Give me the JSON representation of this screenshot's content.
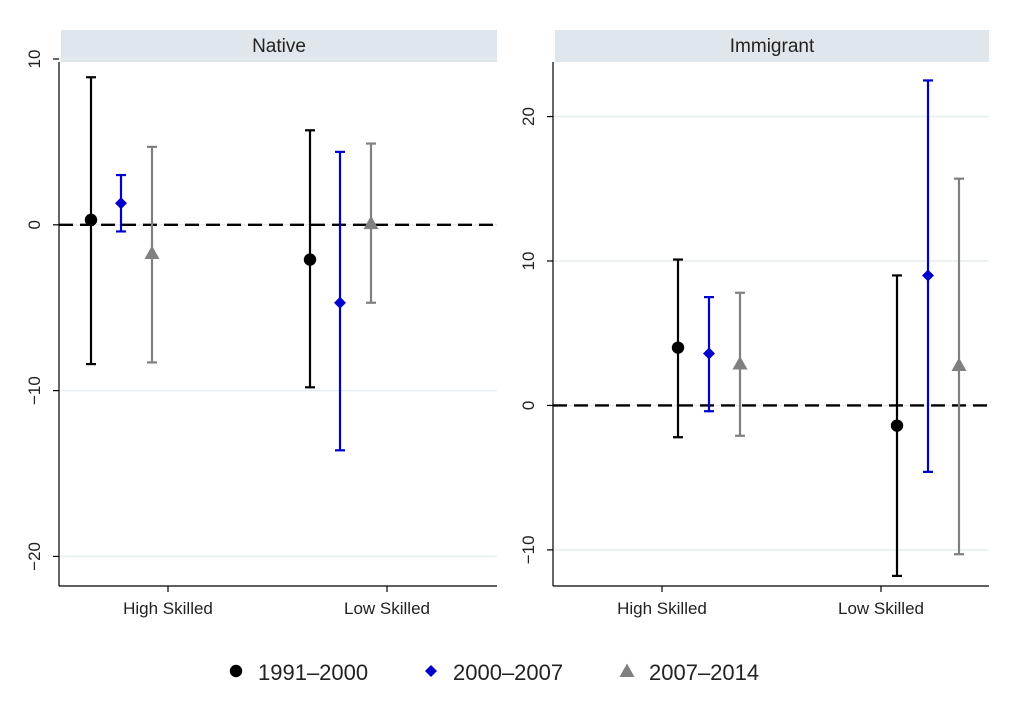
{
  "colors": {
    "strip": "#dfe7ec",
    "grid": "#e6eef1",
    "axis": "#000000",
    "zero_line": "#000000"
  },
  "legend": {
    "position": "bottom",
    "entries": [
      {
        "label": "1991–2000",
        "color": "#000000",
        "marker": "circle"
      },
      {
        "label": "2000–2007",
        "color": "#0000cc",
        "marker": "diamond"
      },
      {
        "label": "2007–2014",
        "color": "#808080",
        "marker": "triangle"
      }
    ]
  },
  "chart_data": [
    {
      "type": "scatter",
      "subtype": "point estimates with confidence intervals",
      "title": "Native",
      "categories": [
        "High Skilled",
        "Low Skilled"
      ],
      "ylim": [
        -21,
        10
      ],
      "yticks": [
        10,
        0,
        -10,
        -20
      ],
      "ytick_labels": [
        "10",
        "0",
        "−10",
        "−20"
      ],
      "grid": true,
      "reference_line": 0,
      "series": [
        {
          "name": "1991–2000",
          "color": "#000000",
          "marker": "circle",
          "estimates": [
            0.3,
            -2.1
          ],
          "lower": [
            -8.4,
            -9.8
          ],
          "upper": [
            8.9,
            5.7
          ]
        },
        {
          "name": "2000–2007",
          "color": "#0000cc",
          "marker": "diamond",
          "estimates": [
            1.3,
            -4.7
          ],
          "lower": [
            -0.4,
            -13.6
          ],
          "upper": [
            3.0,
            4.4
          ]
        },
        {
          "name": "2007–2014",
          "color": "#808080",
          "marker": "triangle",
          "estimates": [
            -1.7,
            0.1
          ],
          "lower": [
            -8.3,
            -4.7
          ],
          "upper": [
            4.7,
            4.9
          ]
        }
      ]
    },
    {
      "type": "scatter",
      "subtype": "point estimates with confidence intervals",
      "title": "Immigrant",
      "categories": [
        "High Skilled",
        "Low Skilled"
      ],
      "ylim": [
        -12.5,
        23.5
      ],
      "yticks": [
        20,
        10,
        0,
        -10
      ],
      "ytick_labels": [
        "20",
        "10",
        "0",
        "−10"
      ],
      "grid": true,
      "reference_line": 0,
      "series": [
        {
          "name": "1991–2000",
          "color": "#000000",
          "marker": "circle",
          "estimates": [
            4.0,
            -1.4
          ],
          "lower": [
            -2.2,
            -11.8
          ],
          "upper": [
            10.1,
            9.0
          ]
        },
        {
          "name": "2000–2007",
          "color": "#0000cc",
          "marker": "diamond",
          "estimates": [
            3.6,
            9.0
          ],
          "lower": [
            -0.4,
            -4.6
          ],
          "upper": [
            7.5,
            22.5
          ]
        },
        {
          "name": "2007–2014",
          "color": "#808080",
          "marker": "triangle",
          "estimates": [
            2.9,
            2.8
          ],
          "lower": [
            -2.1,
            -10.3
          ],
          "upper": [
            7.8,
            15.7
          ]
        }
      ]
    }
  ]
}
